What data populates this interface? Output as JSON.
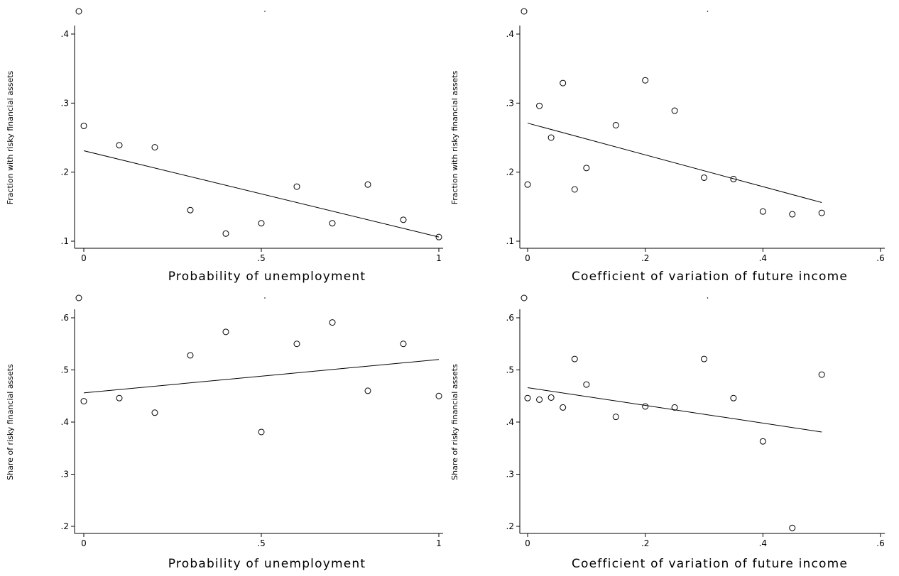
{
  "chart_data": [
    {
      "type": "scatter",
      "xlabel": "Probability of unemployment",
      "ylabel": "Fraction with risky financial assets",
      "xlim": [
        0,
        1
      ],
      "ylim": [
        0.1,
        0.4
      ],
      "xticks": [
        0,
        0.5,
        1
      ],
      "xtick_labels": [
        "0",
        ".5",
        "1"
      ],
      "yticks": [
        0.1,
        0.2,
        0.3,
        0.4
      ],
      "ytick_labels": [
        ".1",
        ".2",
        ".3",
        ".4"
      ],
      "series": [
        {
          "x": [
            0,
            0.1,
            0.2,
            0.3,
            0.4,
            0.5,
            0.6,
            0.7,
            0.8,
            0.9,
            1.0
          ],
          "y": [
            0.267,
            0.239,
            0.236,
            0.145,
            0.111,
            0.126,
            0.179,
            0.126,
            0.182,
            0.131,
            0.106
          ]
        }
      ],
      "fit_line": {
        "x": [
          0,
          1
        ],
        "y": [
          0.231,
          0.106
        ]
      },
      "grid": false
    },
    {
      "type": "scatter",
      "xlabel": "Coefficient of variation of future income",
      "ylabel": "Fraction with risky financial assets",
      "xlim": [
        0,
        0.6
      ],
      "ylim": [
        0.1,
        0.4
      ],
      "xticks": [
        0,
        0.2,
        0.4,
        0.6
      ],
      "xtick_labels": [
        "0",
        ".2",
        ".4",
        ".6"
      ],
      "yticks": [
        0.1,
        0.2,
        0.3,
        0.4
      ],
      "ytick_labels": [
        ".1",
        ".2",
        ".3",
        ".4"
      ],
      "series": [
        {
          "x": [
            0,
            0.02,
            0.04,
            0.06,
            0.08,
            0.1,
            0.15,
            0.2,
            0.25,
            0.3,
            0.35,
            0.4,
            0.45,
            0.5
          ],
          "y": [
            0.182,
            0.296,
            0.25,
            0.329,
            0.175,
            0.206,
            0.268,
            0.333,
            0.289,
            0.192,
            0.19,
            0.143,
            0.139,
            0.141
          ]
        }
      ],
      "fit_line": {
        "x": [
          0,
          0.5
        ],
        "y": [
          0.271,
          0.156
        ]
      },
      "grid": false
    },
    {
      "type": "scatter",
      "xlabel": "Probability of unemployment",
      "ylabel": "Share of risky financial assets",
      "xlim": [
        0,
        1
      ],
      "ylim": [
        0.2,
        0.6
      ],
      "xticks": [
        0,
        0.5,
        1
      ],
      "xtick_labels": [
        "0",
        ".5",
        "1"
      ],
      "yticks": [
        0.2,
        0.3,
        0.4,
        0.5,
        0.6
      ],
      "ytick_labels": [
        ".2",
        ".3",
        ".4",
        ".5",
        ".6"
      ],
      "series": [
        {
          "x": [
            0,
            0.1,
            0.2,
            0.3,
            0.4,
            0.5,
            0.6,
            0.7,
            0.8,
            0.9,
            1.0
          ],
          "y": [
            0.44,
            0.446,
            0.418,
            0.528,
            0.573,
            0.381,
            0.55,
            0.591,
            0.46,
            0.55,
            0.45
          ]
        }
      ],
      "fit_line": {
        "x": [
          0,
          1
        ],
        "y": [
          0.456,
          0.52
        ]
      },
      "grid": false
    },
    {
      "type": "scatter",
      "xlabel": "Coefficient of variation of future income",
      "ylabel": "Share of risky financial assets",
      "xlim": [
        0,
        0.6
      ],
      "ylim": [
        0.2,
        0.6
      ],
      "xticks": [
        0,
        0.2,
        0.4,
        0.6
      ],
      "xtick_labels": [
        "0",
        ".2",
        ".4",
        ".6"
      ],
      "yticks": [
        0.2,
        0.3,
        0.4,
        0.5,
        0.6
      ],
      "ytick_labels": [
        ".2",
        ".3",
        ".4",
        ".5",
        ".6"
      ],
      "series": [
        {
          "x": [
            0,
            0.02,
            0.04,
            0.06,
            0.08,
            0.1,
            0.15,
            0.2,
            0.25,
            0.3,
            0.35,
            0.4,
            0.45,
            0.5
          ],
          "y": [
            0.446,
            0.443,
            0.447,
            0.428,
            0.521,
            0.472,
            0.41,
            0.43,
            0.428,
            0.521,
            0.446,
            0.363,
            0.197,
            0.491
          ]
        }
      ],
      "fit_line": {
        "x": [
          0,
          0.5
        ],
        "y": [
          0.466,
          0.381
        ]
      },
      "grid": false
    }
  ]
}
